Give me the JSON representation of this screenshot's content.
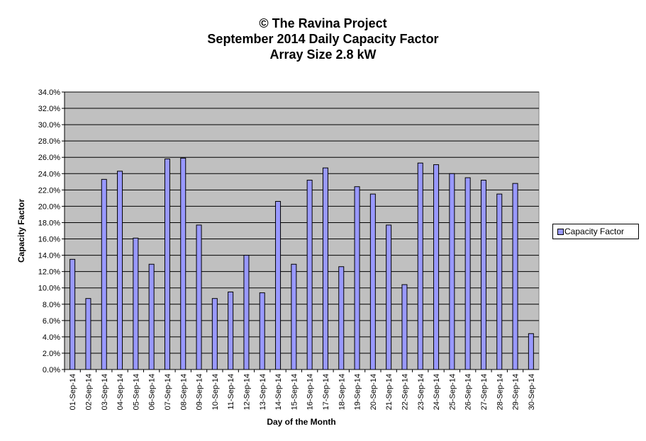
{
  "chart_data": {
    "type": "bar",
    "title_lines": [
      "© The Ravina Project",
      "September 2014 Daily Capacity  Factor",
      "Array Size 2.8 kW"
    ],
    "xlabel": "Day of the Month",
    "ylabel": "Capacity Factor",
    "ylim": [
      0,
      34
    ],
    "y_ticks": [
      "0.0%",
      "2.0%",
      "4.0%",
      "6.0%",
      "8.0%",
      "10.0%",
      "12.0%",
      "14.0%",
      "16.0%",
      "18.0%",
      "20.0%",
      "22.0%",
      "24.0%",
      "26.0%",
      "28.0%",
      "30.0%",
      "32.0%",
      "34.0%"
    ],
    "grid": true,
    "legend_position": "right",
    "categories": [
      "01-Sep-14",
      "02-Sep-14",
      "03-Sep-14",
      "04-Sep-14",
      "05-Sep-14",
      "06-Sep-14",
      "07-Sep-14",
      "08-Sep-14",
      "09-Sep-14",
      "10-Sep-14",
      "11-Sep-14",
      "12-Sep-14",
      "13-Sep-14",
      "14-Sep-14",
      "15-Sep-14",
      "16-Sep-14",
      "17-Sep-14",
      "18-Sep-14",
      "19-Sep-14",
      "20-Sep-14",
      "21-Sep-14",
      "22-Sep-14",
      "23-Sep-14",
      "24-Sep-14",
      "25-Sep-14",
      "26-Sep-14",
      "27-Sep-14",
      "28-Sep-14",
      "29-Sep-14",
      "30-Sep-14"
    ],
    "series": [
      {
        "name": "Capacity  Factor",
        "values": [
          13.5,
          8.7,
          23.3,
          24.3,
          16.1,
          12.9,
          25.8,
          25.9,
          17.7,
          8.7,
          9.5,
          14.0,
          9.4,
          20.6,
          12.9,
          23.2,
          24.7,
          12.6,
          22.4,
          21.5,
          17.7,
          10.4,
          25.3,
          25.1,
          24.0,
          23.5,
          23.2,
          21.5,
          22.8,
          4.4
        ]
      }
    ],
    "colors": {
      "plot_background": "#c0c0c0",
      "bar_fill": "#9999ff",
      "bar_stroke": "#000000",
      "gridline": "#000000"
    }
  }
}
